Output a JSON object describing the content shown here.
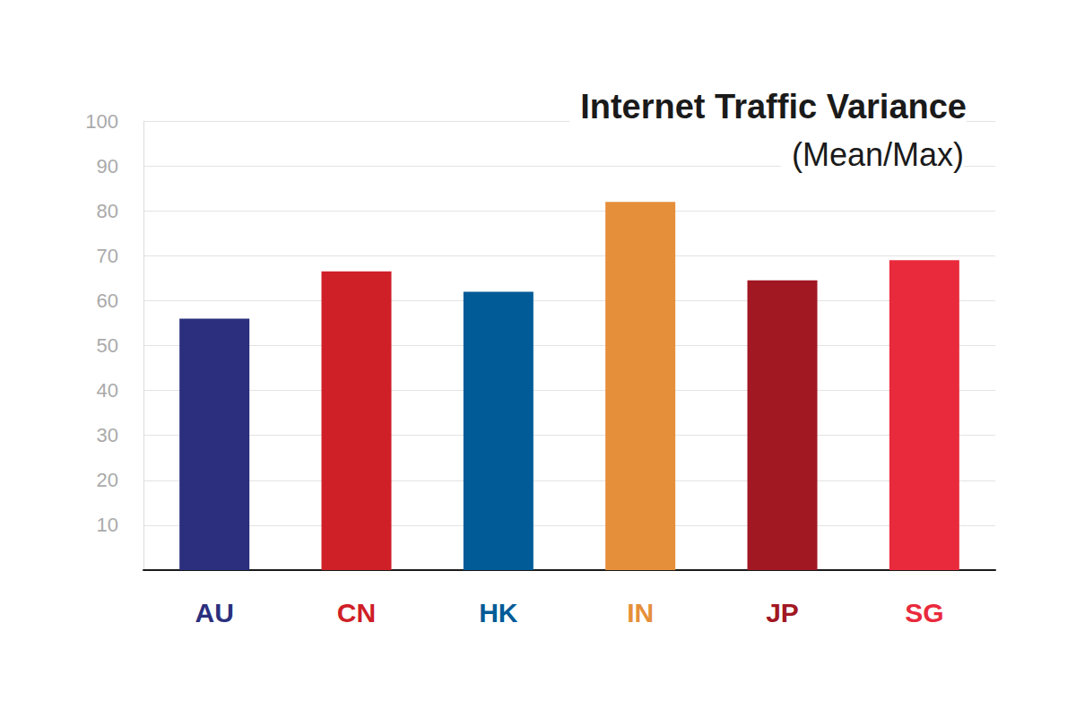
{
  "chart_data": {
    "type": "bar",
    "title": "Internet Traffic Variance",
    "subtitle": "(Mean/Max)",
    "categories": [
      "AU",
      "CN",
      "HK",
      "IN",
      "JP",
      "SG"
    ],
    "values": [
      56,
      66.5,
      62,
      82,
      64.5,
      69
    ],
    "colors": [
      "#2b2f7e",
      "#cf1f27",
      "#005b97",
      "#e68f3a",
      "#a11722",
      "#e92a3c"
    ],
    "ylim": [
      0,
      100
    ],
    "yticks": [
      10,
      20,
      30,
      40,
      50,
      60,
      70,
      80,
      90,
      100
    ],
    "grid": true
  }
}
